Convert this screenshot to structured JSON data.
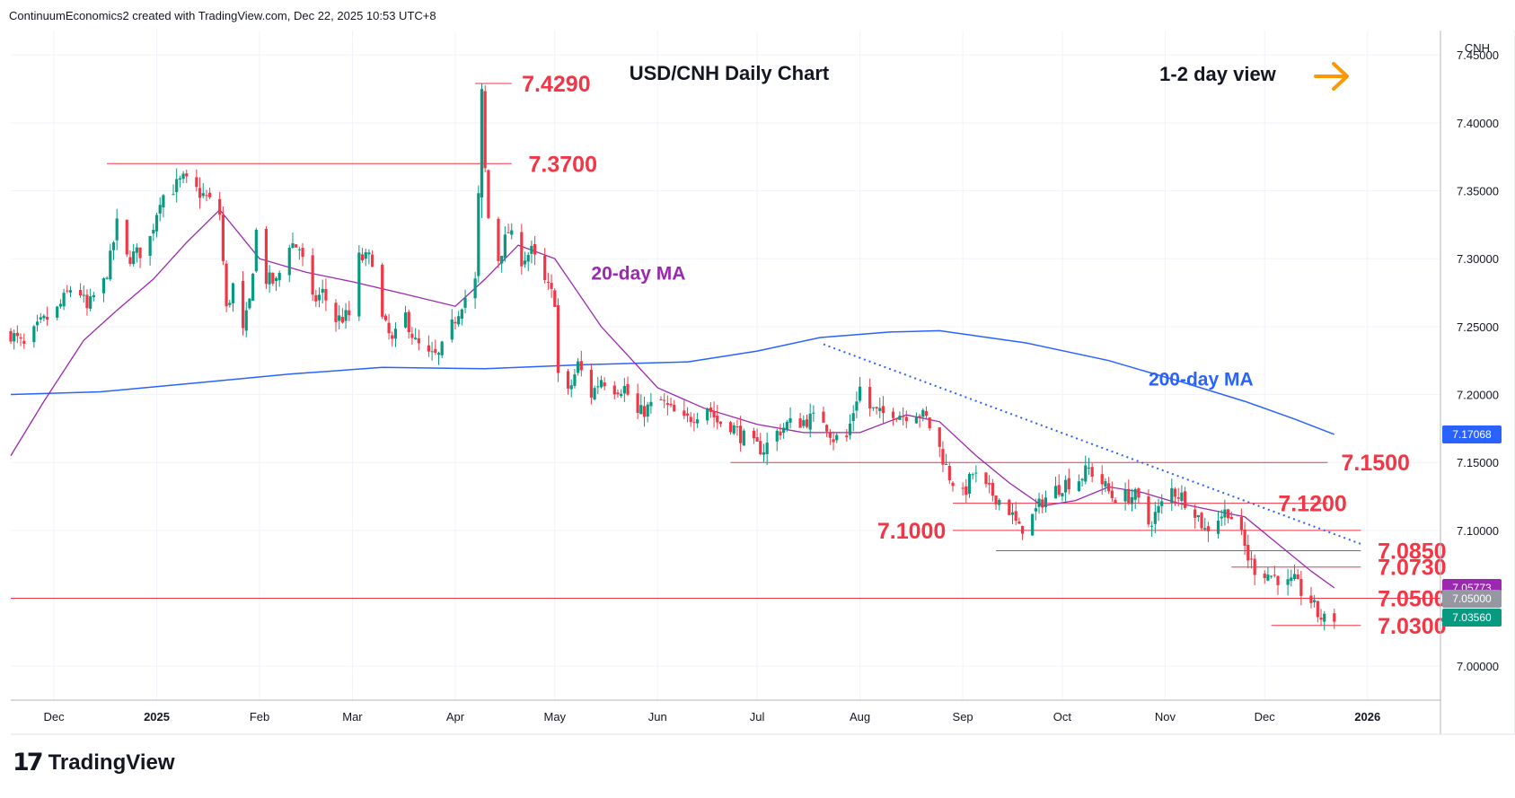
{
  "header": {
    "attribution": "ContinuumEconomics2 created with TradingView.com, Dec 22, 2025 10:53 UTC+8"
  },
  "footer": {
    "logo_mark": "17",
    "brand": "TradingView"
  },
  "colors": {
    "up": "#089981",
    "down": "#f23645",
    "ma20": "#9c27b0",
    "ma200": "#2962ff",
    "annotation": "#f23645",
    "trendline": "#2962ff",
    "arrow": "#ff9800",
    "last_price": "#089981"
  },
  "chart_data": {
    "type": "candlestick",
    "title": "USD/CNH Daily Chart",
    "subtitle": "1-2 day view",
    "currency_label": "CNH",
    "ylim": [
      6.975,
      7.468
    ],
    "x_range": [
      "2024-11-18",
      "2026-01-23"
    ],
    "y_ticks": [
      "7.45000",
      "7.40000",
      "7.35000",
      "7.30000",
      "7.25000",
      "7.20000",
      "7.15000",
      "7.10000",
      "7.05000",
      "7.00000"
    ],
    "x_ticks": [
      {
        "date": "2024-12-01",
        "label": "Dec",
        "bold": false
      },
      {
        "date": "2025-01-01",
        "label": "2025",
        "bold": true
      },
      {
        "date": "2025-02-01",
        "label": "Feb",
        "bold": false
      },
      {
        "date": "2025-03-01",
        "label": "Mar",
        "bold": false
      },
      {
        "date": "2025-04-01",
        "label": "Apr",
        "bold": false
      },
      {
        "date": "2025-05-01",
        "label": "May",
        "bold": false
      },
      {
        "date": "2025-06-01",
        "label": "Jun",
        "bold": false
      },
      {
        "date": "2025-07-01",
        "label": "Jul",
        "bold": false
      },
      {
        "date": "2025-08-01",
        "label": "Aug",
        "bold": false
      },
      {
        "date": "2025-09-01",
        "label": "Sep",
        "bold": false
      },
      {
        "date": "2025-10-01",
        "label": "Oct",
        "bold": false
      },
      {
        "date": "2025-11-01",
        "label": "Nov",
        "bold": false
      },
      {
        "date": "2025-12-01",
        "label": "Dec",
        "bold": false
      },
      {
        "date": "2026-01-01",
        "label": "2026",
        "bold": true
      }
    ],
    "close_path": [
      [
        "2024-11-18",
        7.245
      ],
      [
        "2024-11-22",
        7.235
      ],
      [
        "2024-11-27",
        7.252
      ],
      [
        "2024-12-02",
        7.262
      ],
      [
        "2024-12-06",
        7.278
      ],
      [
        "2024-12-09",
        7.275
      ],
      [
        "2024-12-11",
        7.262
      ],
      [
        "2024-12-13",
        7.272
      ],
      [
        "2024-12-16",
        7.282
      ],
      [
        "2024-12-18",
        7.3
      ],
      [
        "2024-12-20",
        7.325
      ],
      [
        "2024-12-23",
        7.3
      ],
      [
        "2024-12-27",
        7.305
      ],
      [
        "2024-12-30",
        7.315
      ],
      [
        "2025-01-02",
        7.345
      ],
      [
        "2025-01-06",
        7.352
      ],
      [
        "2025-01-09",
        7.358
      ],
      [
        "2025-01-13",
        7.35
      ],
      [
        "2025-01-16",
        7.345
      ],
      [
        "2025-01-20",
        7.333
      ],
      [
        "2025-01-22",
        7.262
      ],
      [
        "2025-01-24",
        7.28
      ],
      [
        "2025-01-27",
        7.245
      ],
      [
        "2025-01-29",
        7.268
      ],
      [
        "2025-01-31",
        7.32
      ],
      [
        "2025-02-03",
        7.285
      ],
      [
        "2025-02-06",
        7.282
      ],
      [
        "2025-02-10",
        7.312
      ],
      [
        "2025-02-13",
        7.308
      ],
      [
        "2025-02-17",
        7.268
      ],
      [
        "2025-02-20",
        7.275
      ],
      [
        "2025-02-24",
        7.255
      ],
      [
        "2025-02-28",
        7.258
      ],
      [
        "2025-03-03",
        7.3
      ],
      [
        "2025-03-07",
        7.3
      ],
      [
        "2025-03-10",
        7.255
      ],
      [
        "2025-03-13",
        7.238
      ],
      [
        "2025-03-17",
        7.258
      ],
      [
        "2025-03-20",
        7.238
      ],
      [
        "2025-03-24",
        7.228
      ],
      [
        "2025-03-27",
        7.228
      ],
      [
        "2025-03-31",
        7.25
      ],
      [
        "2025-04-03",
        7.268
      ],
      [
        "2025-04-07",
        7.283
      ],
      [
        "2025-04-08",
        7.345
      ],
      [
        "2025-04-09",
        7.42
      ],
      [
        "2025-04-10",
        7.365
      ],
      [
        "2025-04-11",
        7.33
      ],
      [
        "2025-04-14",
        7.3
      ],
      [
        "2025-04-17",
        7.32
      ],
      [
        "2025-04-21",
        7.3
      ],
      [
        "2025-04-24",
        7.305
      ],
      [
        "2025-04-28",
        7.282
      ],
      [
        "2025-05-01",
        7.27
      ],
      [
        "2025-05-02",
        7.215
      ],
      [
        "2025-05-05",
        7.2
      ],
      [
        "2025-05-08",
        7.222
      ],
      [
        "2025-05-12",
        7.2
      ],
      [
        "2025-05-15",
        7.212
      ],
      [
        "2025-05-19",
        7.205
      ],
      [
        "2025-05-22",
        7.205
      ],
      [
        "2025-05-26",
        7.185
      ],
      [
        "2025-05-29",
        7.19
      ],
      [
        "2025-06-02",
        7.195
      ],
      [
        "2025-06-05",
        7.188
      ],
      [
        "2025-06-09",
        7.18
      ],
      [
        "2025-06-12",
        7.185
      ],
      [
        "2025-06-16",
        7.192
      ],
      [
        "2025-06-19",
        7.18
      ],
      [
        "2025-06-23",
        7.178
      ],
      [
        "2025-06-26",
        7.17
      ],
      [
        "2025-06-30",
        7.162
      ],
      [
        "2025-07-03",
        7.16
      ],
      [
        "2025-07-07",
        7.172
      ],
      [
        "2025-07-10",
        7.178
      ],
      [
        "2025-07-14",
        7.18
      ],
      [
        "2025-07-17",
        7.182
      ],
      [
        "2025-07-21",
        7.182
      ],
      [
        "2025-07-24",
        7.168
      ],
      [
        "2025-07-28",
        7.168
      ],
      [
        "2025-07-31",
        7.198
      ],
      [
        "2025-08-01",
        7.205
      ],
      [
        "2025-08-04",
        7.19
      ],
      [
        "2025-08-07",
        7.185
      ],
      [
        "2025-08-11",
        7.188
      ],
      [
        "2025-08-14",
        7.185
      ],
      [
        "2025-08-18",
        7.188
      ],
      [
        "2025-08-21",
        7.182
      ],
      [
        "2025-08-25",
        7.16
      ],
      [
        "2025-08-28",
        7.14
      ],
      [
        "2025-09-01",
        7.125
      ],
      [
        "2025-09-04",
        7.142
      ],
      [
        "2025-09-08",
        7.13
      ],
      [
        "2025-09-11",
        7.125
      ],
      [
        "2025-09-15",
        7.115
      ],
      [
        "2025-09-18",
        7.1
      ],
      [
        "2025-09-22",
        7.11
      ],
      [
        "2025-09-25",
        7.122
      ],
      [
        "2025-09-29",
        7.13
      ],
      [
        "2025-10-02",
        7.135
      ],
      [
        "2025-10-06",
        7.138
      ],
      [
        "2025-10-09",
        7.145
      ],
      [
        "2025-10-13",
        7.135
      ],
      [
        "2025-10-16",
        7.125
      ],
      [
        "2025-10-20",
        7.125
      ],
      [
        "2025-10-23",
        7.125
      ],
      [
        "2025-10-27",
        7.105
      ],
      [
        "2025-10-30",
        7.115
      ],
      [
        "2025-11-03",
        7.13
      ],
      [
        "2025-11-06",
        7.125
      ],
      [
        "2025-11-10",
        7.115
      ],
      [
        "2025-11-13",
        7.1
      ],
      [
        "2025-11-17",
        7.11
      ],
      [
        "2025-11-20",
        7.115
      ],
      [
        "2025-11-24",
        7.095
      ],
      [
        "2025-11-26",
        7.08
      ],
      [
        "2025-11-28",
        7.072
      ],
      [
        "2025-12-02",
        7.068
      ],
      [
        "2025-12-05",
        7.065
      ],
      [
        "2025-12-08",
        7.06
      ],
      [
        "2025-12-10",
        7.062
      ],
      [
        "2025-12-12",
        7.055
      ],
      [
        "2025-12-15",
        7.048
      ],
      [
        "2025-12-17",
        7.038
      ],
      [
        "2025-12-19",
        7.034
      ],
      [
        "2025-12-22",
        7.0356
      ]
    ],
    "ma20_path": [
      [
        "2024-11-18",
        7.155
      ],
      [
        "2024-11-28",
        7.195
      ],
      [
        "2024-12-10",
        7.24
      ],
      [
        "2024-12-20",
        7.262
      ],
      [
        "2024-12-31",
        7.285
      ],
      [
        "2025-01-10",
        7.312
      ],
      [
        "2025-01-20",
        7.336
      ],
      [
        "2025-02-01",
        7.3
      ],
      [
        "2025-02-15",
        7.29
      ],
      [
        "2025-03-01",
        7.283
      ],
      [
        "2025-03-15",
        7.275
      ],
      [
        "2025-04-01",
        7.265
      ],
      [
        "2025-04-10",
        7.285
      ],
      [
        "2025-04-20",
        7.31
      ],
      [
        "2025-05-01",
        7.3
      ],
      [
        "2025-05-15",
        7.25
      ],
      [
        "2025-06-01",
        7.205
      ],
      [
        "2025-06-15",
        7.19
      ],
      [
        "2025-07-01",
        7.178
      ],
      [
        "2025-07-15",
        7.172
      ],
      [
        "2025-08-01",
        7.172
      ],
      [
        "2025-08-15",
        7.185
      ],
      [
        "2025-08-25",
        7.18
      ],
      [
        "2025-09-05",
        7.155
      ],
      [
        "2025-09-15",
        7.135
      ],
      [
        "2025-09-25",
        7.118
      ],
      [
        "2025-10-05",
        7.122
      ],
      [
        "2025-10-15",
        7.132
      ],
      [
        "2025-10-25",
        7.128
      ],
      [
        "2025-11-05",
        7.12
      ],
      [
        "2025-11-15",
        7.115
      ],
      [
        "2025-11-25",
        7.11
      ],
      [
        "2025-12-05",
        7.09
      ],
      [
        "2025-12-15",
        7.07
      ],
      [
        "2025-12-22",
        7.0577
      ]
    ],
    "ma200_path": [
      [
        "2024-11-18",
        7.2
      ],
      [
        "2024-12-15",
        7.202
      ],
      [
        "2025-01-15",
        7.209
      ],
      [
        "2025-02-10",
        7.215
      ],
      [
        "2025-03-10",
        7.22
      ],
      [
        "2025-04-10",
        7.219
      ],
      [
        "2025-05-10",
        7.222
      ],
      [
        "2025-06-10",
        7.224
      ],
      [
        "2025-07-01",
        7.232
      ],
      [
        "2025-07-20",
        7.242
      ],
      [
        "2025-08-10",
        7.246
      ],
      [
        "2025-08-25",
        7.247
      ],
      [
        "2025-09-20",
        7.238
      ],
      [
        "2025-10-15",
        7.225
      ],
      [
        "2025-11-05",
        7.21
      ],
      [
        "2025-11-25",
        7.195
      ],
      [
        "2025-12-10",
        7.182
      ],
      [
        "2025-12-22",
        7.1707
      ]
    ],
    "ma_labels": [
      {
        "text": "20-day MA",
        "date": "2025-05-12",
        "value": 7.29
      },
      {
        "text": "200-day MA",
        "date": "2025-10-27",
        "value": 7.212
      }
    ],
    "levels": [
      {
        "value": 7.429,
        "label": "7.4290",
        "from": "2025-04-07",
        "to": "2025-04-18",
        "label_at": "2025-04-20",
        "anchor": "start"
      },
      {
        "value": 7.37,
        "label": "7.3700",
        "from": "2024-12-17",
        "to": "2025-04-18",
        "label_at": "2025-04-22",
        "anchor": "start"
      },
      {
        "value": 7.15,
        "label": "7.1500",
        "from": "2025-06-23",
        "to": "2025-12-20",
        "label_at": "2025-12-23",
        "anchor": "start"
      },
      {
        "value": 7.12,
        "label": "7.1200",
        "from": "2025-08-29",
        "to": "2025-12-20",
        "label_at": "2025-12-04",
        "anchor": "start"
      },
      {
        "value": 7.1,
        "label": "7.1000",
        "from": "2025-08-29",
        "to": "2025-12-30",
        "label_at": "2025-08-28",
        "anchor": "end"
      },
      {
        "value": 7.085,
        "label": "7.0850",
        "from": "2025-09-11",
        "to": "2025-12-30",
        "label_at": "2026-01-03",
        "anchor": "start"
      },
      {
        "value": 7.073,
        "label": "7.0730",
        "from": "2025-11-21",
        "to": "2025-12-30",
        "label_at": "2026-01-03",
        "anchor": "start"
      },
      {
        "value": 7.05,
        "label": "7.0500",
        "from": "2024-11-18",
        "to": "2026-01-03",
        "label_at": "2026-01-03",
        "anchor": "start"
      },
      {
        "value": 7.03,
        "label": "7.0300",
        "from": "2025-12-03",
        "to": "2025-12-30",
        "label_at": "2026-01-03",
        "anchor": "start"
      }
    ],
    "trendline": {
      "from": [
        "2025-07-21",
        7.237
      ],
      "to": [
        "2025-12-30",
        7.09
      ]
    },
    "price_tags": [
      {
        "label": "7.17068",
        "value": 7.17068,
        "color": "#2962ff"
      },
      {
        "label": "7.05773",
        "value": 7.05773,
        "color": "#9c27b0"
      },
      {
        "label": "7.05000",
        "value": 7.05,
        "color": "#9598a1"
      },
      {
        "label": "7.03560",
        "value": 7.0356,
        "color": "#089981"
      }
    ]
  }
}
